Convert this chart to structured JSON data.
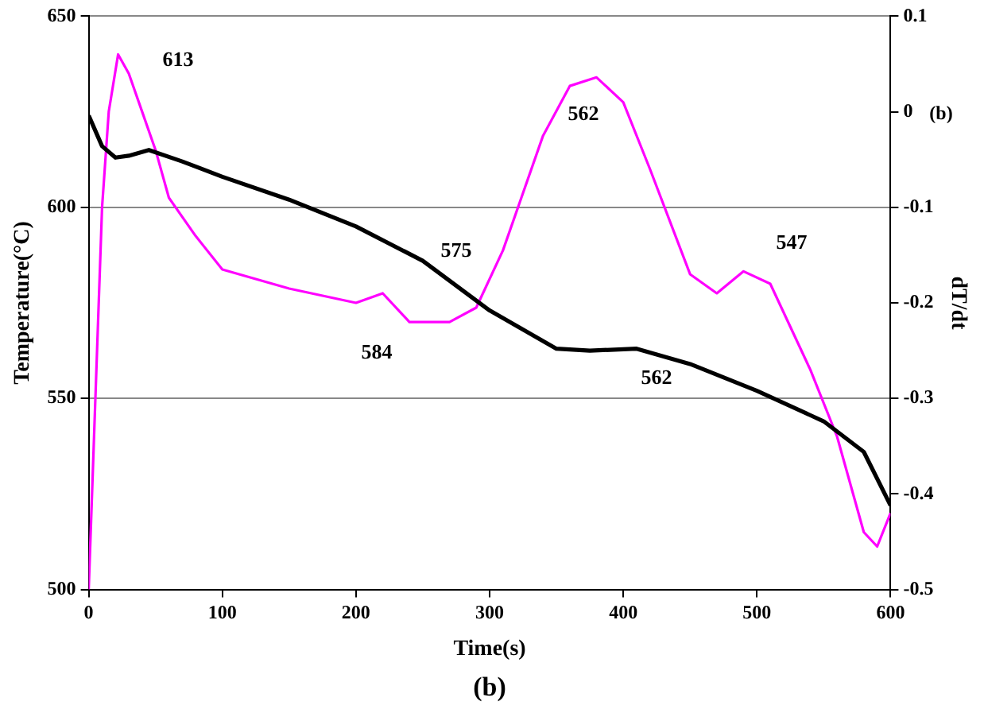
{
  "chart_data": {
    "type": "line",
    "xlabel": "Time(s)",
    "ylabel": "Temperature(°C)",
    "y2label": "dT/dt",
    "xlim": [
      0,
      600
    ],
    "xticks": [
      0,
      100,
      200,
      300,
      400,
      500,
      600
    ],
    "ylim": [
      500,
      650
    ],
    "yticks": [
      500,
      550,
      600,
      650
    ],
    "y2lim": [
      -0.5,
      0.1
    ],
    "y2ticks": [
      -0.5,
      -0.4,
      -0.3,
      -0.2,
      -0.1,
      0,
      0.1
    ],
    "grid": "y",
    "marker": "none",
    "line_style": "solid",
    "series": [
      {
        "color": "#000000",
        "x": [
          0,
          10,
          20,
          30,
          45,
          70,
          100,
          150,
          200,
          250,
          300,
          350,
          375,
          410,
          450,
          500,
          550,
          580,
          600
        ],
        "values": [
          624,
          616,
          613,
          613.5,
          615,
          612,
          608,
          602,
          595,
          586,
          573,
          563,
          562.5,
          563,
          559,
          552,
          544,
          536,
          522
        ]
      },
      {
        "color": "#ff00ff",
        "axis": "y2",
        "x": [
          0,
          5,
          10,
          15,
          22,
          30,
          40,
          50,
          60,
          80,
          100,
          150,
          200,
          220,
          240,
          270,
          290,
          310,
          340,
          360,
          380,
          400,
          420,
          450,
          470,
          490,
          510,
          540,
          560,
          580,
          590,
          600
        ],
        "values": [
          -0.5,
          -0.3,
          -0.1,
          0.0,
          0.06,
          0.04,
          0.0,
          -0.04,
          -0.09,
          -0.13,
          -0.165,
          -0.185,
          -0.2,
          -0.19,
          -0.22,
          -0.22,
          -0.205,
          -0.145,
          -0.025,
          0.027,
          0.036,
          0.01,
          -0.06,
          -0.17,
          -0.19,
          -0.167,
          -0.18,
          -0.27,
          -0.34,
          -0.44,
          -0.455,
          -0.42
        ]
      }
    ],
    "annotations": [
      "613",
      "562",
      "575",
      "584",
      "562",
      "547",
      "(b)",
      "(b)"
    ]
  }
}
